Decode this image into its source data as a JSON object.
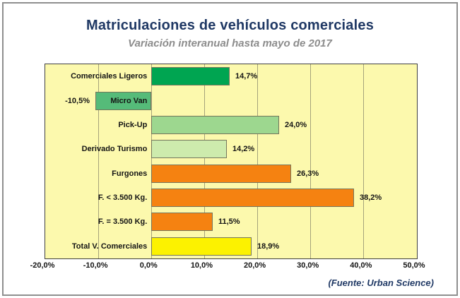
{
  "header": {
    "title": "Matriculaciones de vehículos comerciales",
    "subtitle": "Variación interanual hasta mayo de 2017"
  },
  "source_caption": "(Fuente: Urban Science)",
  "colors": {
    "title": "#1f3864",
    "subtitle": "#8c8c8c",
    "source": "#1f3864",
    "plot_background": "#fcf9ad",
    "gridline": "#a5a37b",
    "plot_border": "#404040",
    "bar_border": "#75755c",
    "frame_border": "#8f8f8f"
  },
  "chart_data": {
    "type": "bar",
    "orientation": "horizontal",
    "title": "Matriculaciones de vehículos comerciales",
    "subtitle": "Variación interanual hasta mayo de 2017",
    "categories": [
      "Comerciales Ligeros",
      "Micro Van",
      "Pick-Up",
      "Derivado Turismo",
      "Furgones",
      "F. < 3.500 Kg.",
      "F. = 3.500 Kg.",
      "Total V. Comerciales"
    ],
    "values": [
      14.7,
      -10.5,
      24.0,
      14.2,
      26.3,
      38.2,
      11.5,
      18.9
    ],
    "value_labels": [
      "14,7%",
      "-10,5%",
      "24,0%",
      "14,2%",
      "26,3%",
      "38,2%",
      "11,5%",
      "18,9%"
    ],
    "bar_colors": [
      "#00a551",
      "#55bb79",
      "#9dd78f",
      "#cdebad",
      "#f58211",
      "#f58211",
      "#f58211",
      "#fcf200"
    ],
    "xlim": [
      -20,
      50
    ],
    "x_ticks": [
      -20,
      -10,
      0,
      10,
      20,
      30,
      40,
      50
    ],
    "x_tick_labels": [
      "-20,0%",
      "-10,0%",
      "0,0%",
      "10,0%",
      "20,0%",
      "30,0%",
      "40,0%",
      "50,0%"
    ],
    "grid": true,
    "legend": false,
    "xlabel": "",
    "ylabel": ""
  }
}
